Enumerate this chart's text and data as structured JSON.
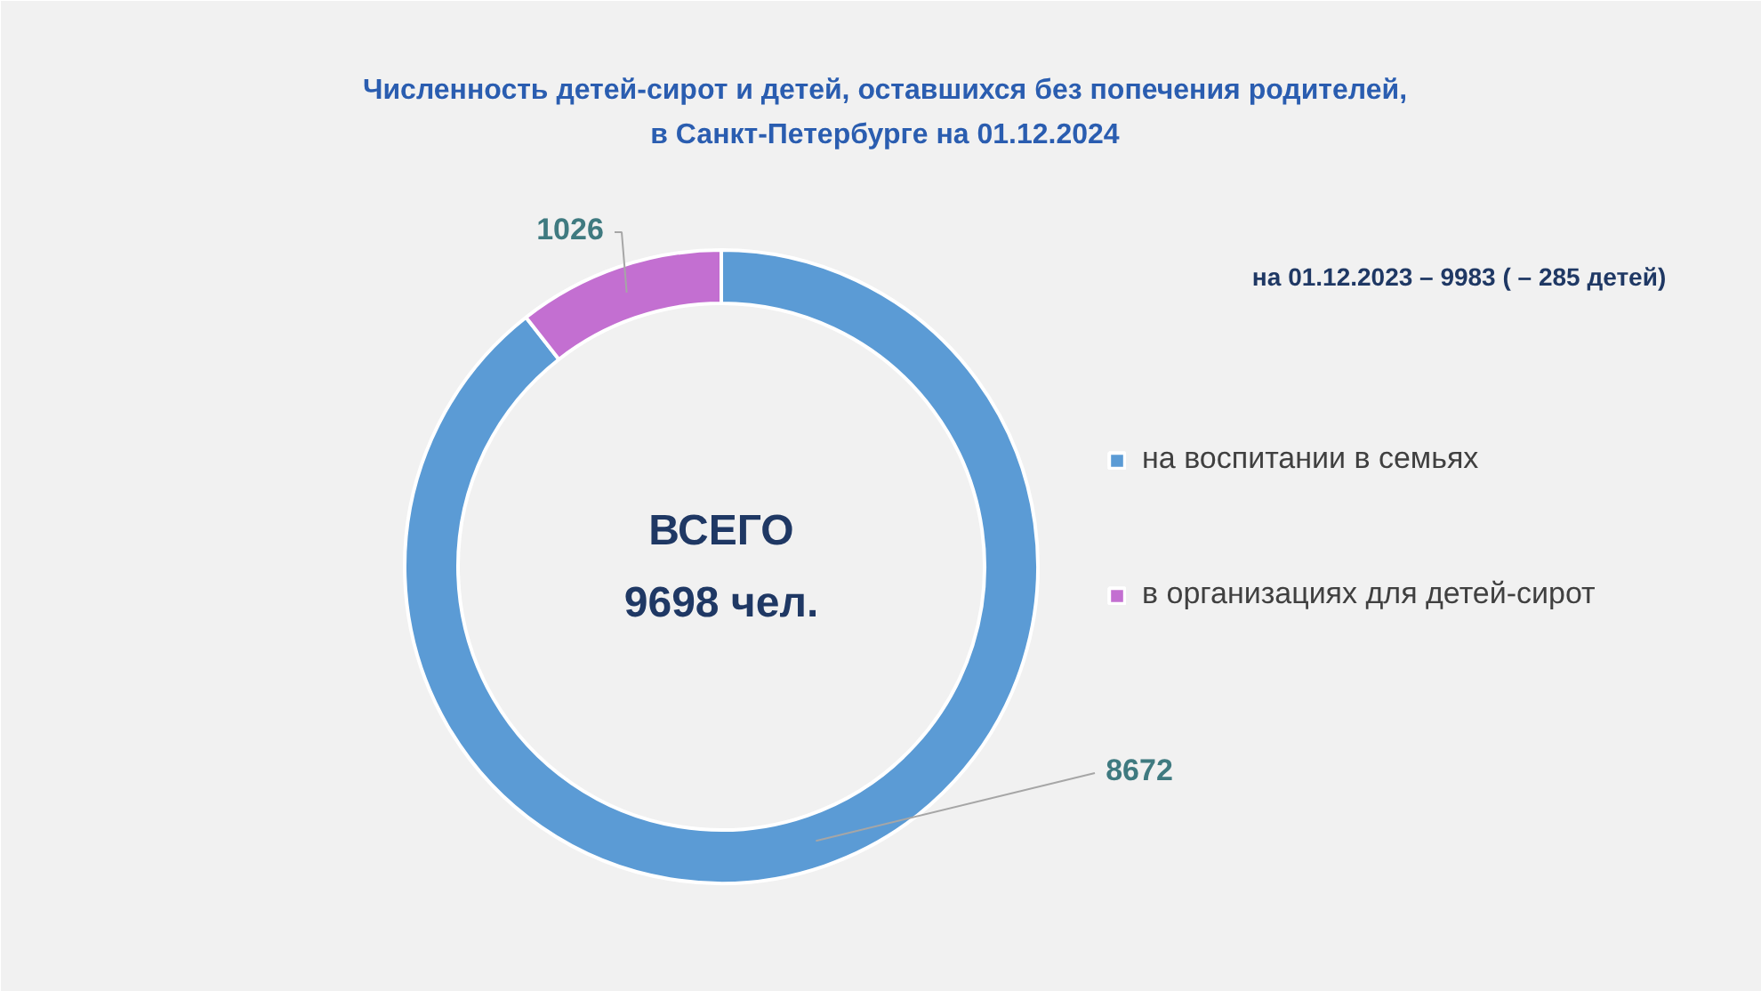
{
  "chart_data": {
    "type": "donut",
    "title": "Численность детей-сирот и детей, оставшихся без попечения родителей,\nв Санкт-Петербурге на 01.12.2024",
    "categories": [
      "на воспитании в семьях",
      "в организациях для детей-сирот"
    ],
    "values": [
      8672,
      1026
    ],
    "colors": [
      "#5b9bd5",
      "#c36fd1"
    ],
    "data_labels": true,
    "legend": "right",
    "annotations": [
      "ВСЕГО\n9698 чел.",
      "на 01.12.2023  – 9983 ( – 285 детей)"
    ]
  }
}
